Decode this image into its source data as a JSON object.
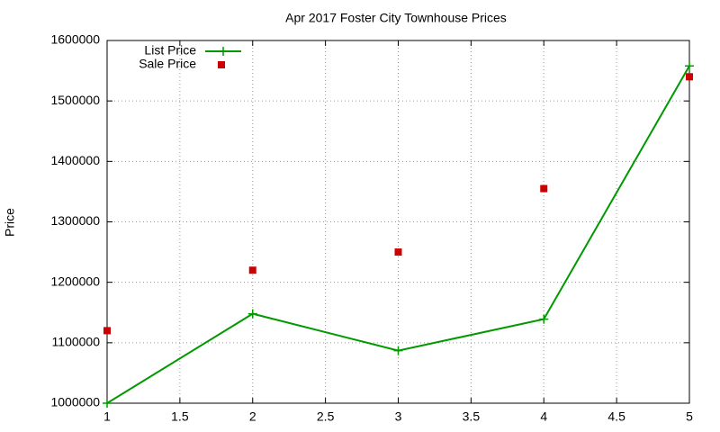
{
  "chart_data": {
    "type": "line",
    "title": "Apr 2017 Foster City Townhouse Prices",
    "ylabel": "Price",
    "x": [
      1,
      2,
      3,
      4,
      5
    ],
    "series": [
      {
        "name": "List Price",
        "color": "#009900",
        "style": "linespoints",
        "values": [
          1000000,
          1148000,
          1087000,
          1139000,
          1558000
        ]
      },
      {
        "name": "Sale Price",
        "color": "#cc0000",
        "style": "points",
        "values": [
          1120000,
          1220000,
          1250000,
          1355000,
          1540000
        ]
      }
    ],
    "xlim": [
      1,
      5
    ],
    "xticks": [
      1,
      1.5,
      2,
      2.5,
      3,
      3.5,
      4,
      4.5,
      5
    ],
    "ylim": [
      1000000,
      1600000
    ],
    "yticks": [
      1000000,
      1100000,
      1200000,
      1300000,
      1400000,
      1500000,
      1600000
    ],
    "grid": true,
    "legend": "top-left"
  }
}
